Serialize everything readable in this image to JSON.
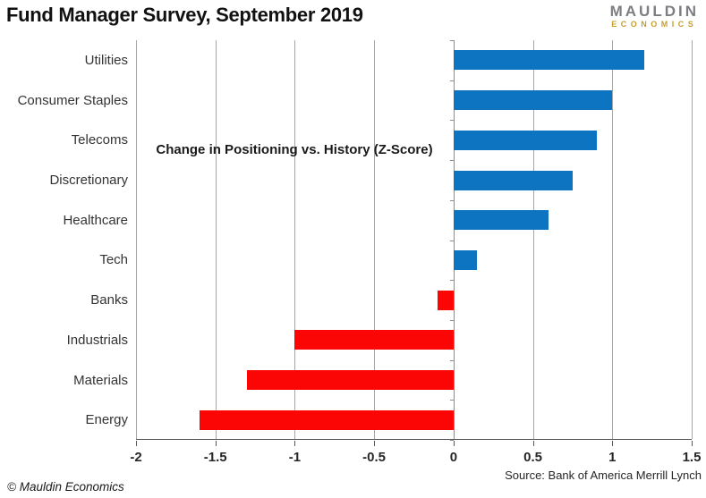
{
  "header": {
    "title": "Fund Manager Survey, September 2019",
    "logo_line1": "MAULDIN",
    "logo_line2": "ECONOMICS"
  },
  "chart_data": {
    "type": "bar",
    "orientation": "horizontal",
    "title": "Fund Manager Survey, September 2019",
    "annotation": "Change in Positioning vs. History (Z-Score)",
    "categories": [
      "Utilities",
      "Consumer Staples",
      "Telecoms",
      "Discretionary",
      "Healthcare",
      "Tech",
      "Banks",
      "Industrials",
      "Materials",
      "Energy"
    ],
    "values": [
      1.2,
      1.0,
      0.9,
      0.75,
      0.6,
      0.15,
      -0.1,
      -1.0,
      -1.3,
      -1.6
    ],
    "xlim": [
      -2,
      1.5
    ],
    "xticks": [
      -2,
      -1.5,
      -1,
      -0.5,
      0,
      0.5,
      1,
      1.5
    ],
    "xtick_labels": [
      "-2",
      "-1.5",
      "-1",
      "-0.5",
      "0",
      "0.5",
      "1",
      "1.5"
    ],
    "grid": true,
    "legend": "none",
    "colors": {
      "positive": "#0d74c2",
      "negative": "#fb0505"
    }
  },
  "footer": {
    "copyright": "© Mauldin Economics",
    "source": "Source: Bank of America Merrill Lynch"
  }
}
